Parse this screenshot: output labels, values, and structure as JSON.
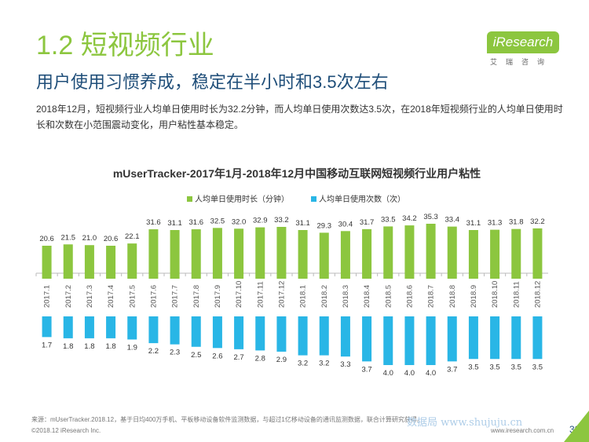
{
  "header": {
    "section_title": "1.2 短视频行业",
    "logo_text": "iResearch",
    "logo_subtext": "艾瑞咨询",
    "headline": "用户使用习惯养成，稳定在半小时和3.5次左右",
    "summary": "2018年12月，短视频行业人均单日使用时长为32.2分钟，而人均单日使用次数达3.5次，在2018年短视频行业的人均单日使用时长和次数在小范围震动变化，用户粘性基本稳定。"
  },
  "chart_data": {
    "type": "bar",
    "title": "mUserTracker-2017年1月-2018年12月中国移动互联网短视频行业用户粘性",
    "legend_position": "top-center",
    "categories": [
      "2017.1",
      "2017.2",
      "2017.3",
      "2017.4",
      "2017.5",
      "2017.6",
      "2017.7",
      "2017.8",
      "2017.9",
      "2017.10",
      "2017.11",
      "2017.12",
      "2018.1",
      "2018.2",
      "2018.3",
      "2018.4",
      "2018.5",
      "2018.6",
      "2018.7",
      "2018.8",
      "2018.9",
      "2018.10",
      "2018.11",
      "2018.12"
    ],
    "series": [
      {
        "name": "人均单日使用时长（分钟）",
        "values": [
          20.6,
          21.5,
          21.0,
          20.6,
          22.1,
          31.6,
          31.1,
          31.6,
          32.5,
          32.0,
          32.9,
          33.2,
          31.1,
          29.3,
          30.4,
          31.7,
          33.5,
          34.2,
          35.3,
          33.4,
          31.1,
          31.3,
          31.8,
          32.2
        ],
        "value_labels": [
          "20.6",
          "21.5",
          "21.0",
          "20.6",
          "22.1",
          "31.6",
          "31.1",
          "31.6",
          "32.5",
          "32.0",
          "32.9",
          "33.2",
          "31.1",
          "29.3",
          "30.4",
          "31.7",
          "33.5",
          "34.2",
          "35.3",
          "33.4",
          "31.1",
          "31.3",
          "31.8",
          "32.2"
        ]
      },
      {
        "name": "人均单日使用次数（次）",
        "values": [
          1.7,
          1.8,
          1.8,
          1.8,
          1.9,
          2.2,
          2.3,
          2.5,
          2.6,
          2.7,
          2.8,
          2.9,
          3.2,
          3.2,
          3.3,
          3.7,
          4.0,
          4.0,
          4.0,
          3.7,
          3.5,
          3.5,
          3.5,
          3.5
        ],
        "value_labels": [
          "1.7",
          "1.8",
          "1.8",
          "1.8",
          "1.9",
          "2.2",
          "2.3",
          "2.5",
          "2.6",
          "2.7",
          "2.8",
          "2.9",
          "3.2",
          "3.2",
          "3.3",
          "3.7",
          "4.0",
          "4.0",
          "4.0",
          "3.7",
          "3.5",
          "3.5",
          "3.5",
          "3.5"
        ]
      }
    ],
    "colors": {
      "duration": "#8cc63f",
      "count": "#29b6e6"
    },
    "grid": false
  },
  "footer": {
    "source": "来源：mUserTracker.2018.12，基于日均400万手机、平板移动设备软件监测数据，与超过1亿移动设备的通讯监测数据，联合计算研究获得。",
    "copyright": "©2018.12 iResearch Inc.",
    "website": "www.iresearch.com.cn",
    "page_number": "32",
    "watermark": "数据局 www.shujuju.cn"
  }
}
